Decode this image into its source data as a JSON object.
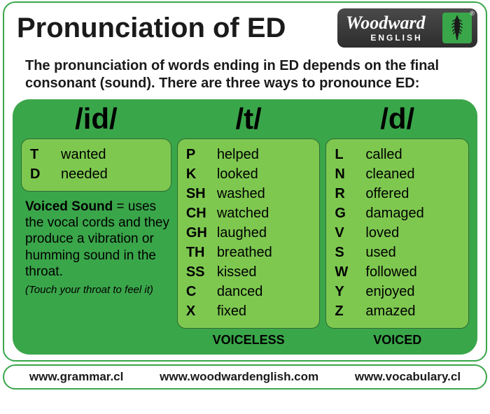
{
  "title": "Pronunciation of ED",
  "logo": {
    "line1": "Woodward",
    "line2": "ENGLISH",
    "reg": "®"
  },
  "intro": "The pronunciation of words ending in ED depends on the final consonant (sound). There are three ways to pronounce ED:",
  "colors": {
    "panel_bg": "#3aa64a",
    "box_bg": "#7ec850",
    "box_border": "#2d6b33",
    "outer_border": "#3aa64a"
  },
  "columns": {
    "id": {
      "header": "/id/",
      "rows": [
        {
          "letter": "T",
          "word": "wanted"
        },
        {
          "letter": "D",
          "word": "needed"
        }
      ],
      "note_bold": "Voiced Sound",
      "note_body": " = uses the vocal cords and they produce a vibration or humming sound in the throat.",
      "note_small": "(Touch your throat to feel it)"
    },
    "t": {
      "header": "/t/",
      "rows": [
        {
          "letter": "P",
          "word": "helped"
        },
        {
          "letter": "K",
          "word": "looked"
        },
        {
          "letter": "SH",
          "word": "washed"
        },
        {
          "letter": "CH",
          "word": "watched"
        },
        {
          "letter": "GH",
          "word": "laughed"
        },
        {
          "letter": "TH",
          "word": "breathed"
        },
        {
          "letter": "SS",
          "word": "kissed"
        },
        {
          "letter": "C",
          "word": "danced"
        },
        {
          "letter": "X",
          "word": "fixed"
        }
      ],
      "caption": "VOICELESS"
    },
    "d": {
      "header": "/d/",
      "rows": [
        {
          "letter": "L",
          "word": "called"
        },
        {
          "letter": "N",
          "word": "cleaned"
        },
        {
          "letter": "R",
          "word": "offered"
        },
        {
          "letter": "G",
          "word": "damaged"
        },
        {
          "letter": "V",
          "word": "loved"
        },
        {
          "letter": "S",
          "word": "used"
        },
        {
          "letter": "W",
          "word": "followed"
        },
        {
          "letter": "Y",
          "word": "enjoyed"
        },
        {
          "letter": "Z",
          "word": "amazed"
        }
      ],
      "caption": "VOICED"
    }
  },
  "footer": {
    "a": "www.grammar.cl",
    "b": "www.woodwardenglish.com",
    "c": "www.vocabulary.cl"
  }
}
